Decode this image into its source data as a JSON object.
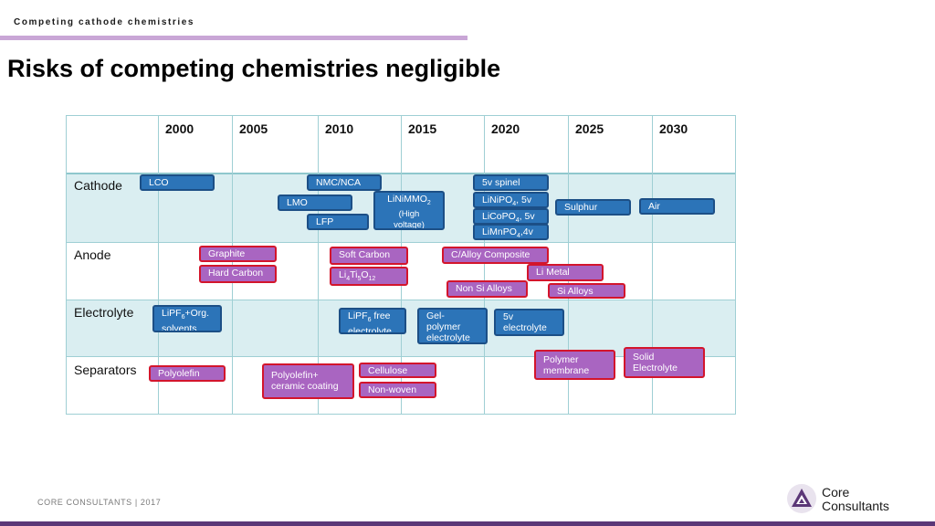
{
  "header": {
    "section_label": "Competing cathode chemistries",
    "title": "Risks of competing chemistries negligible"
  },
  "timeline": {
    "years": [
      "2000",
      "2005",
      "2010",
      "2015",
      "2020",
      "2025",
      "2030"
    ],
    "rows": {
      "cathode": {
        "label": "Cathode",
        "items": {
          "lco": "LCO",
          "nmc": "NMC/NCA",
          "lmo": "LMO",
          "lfp": "LFP",
          "linimmo2_a": "LiNiMMO",
          "linimmo2_sub": "2",
          "linimmo2_b": "(High",
          "linimmo2_c": "voltage)",
          "spinel": "5v spinel",
          "linipo4_a": "LiNiPO",
          "linipo4_sub": "4",
          "linipo4_b": ", 5v",
          "licopo4_a": "LiCoPO",
          "licopo4_sub": "4",
          "licopo4_b": ", 5v",
          "limnpo4_a": "LiMnPO",
          "limnpo4_sub": "4",
          "limnpo4_b": ",4v",
          "sulphur": "Sulphur",
          "air": "Air"
        }
      },
      "anode": {
        "label": "Anode",
        "items": {
          "graphite": "Graphite",
          "hard_carbon": "Hard Carbon",
          "soft_carbon": "Soft Carbon",
          "lto_a": "Li",
          "lto_s1": "4",
          "lto_b": "Ti",
          "lto_s2": "5",
          "lto_c": "O",
          "lto_s3": "12",
          "c_alloy": "C/Alloy Composite",
          "li_metal": "Li Metal",
          "non_si": "Non Si Alloys",
          "si_alloys": "Si Alloys"
        }
      },
      "electrolyte": {
        "label": "Electrolyte",
        "items": {
          "lipf6_org_a": "LiPF",
          "lipf6_org_sub": "6",
          "lipf6_org_b": "+Org.",
          "lipf6_org_c": "solvents",
          "lipf6_free_a": "LiPF",
          "lipf6_free_sub": "6",
          "lipf6_free_b": " free",
          "lipf6_free_c": "electrolyte",
          "gel_a": "Gel-",
          "gel_b": "polymer",
          "gel_c": "electrolyte",
          "v5_a": "5v",
          "v5_b": "electrolyte"
        }
      },
      "separators": {
        "label": "Separators",
        "items": {
          "polyolefin": "Polyolefin",
          "polyolefin_ceramic_a": "Polyolefin+",
          "polyolefin_ceramic_b": "ceramic coating",
          "cellulose": "Cellulose",
          "non_woven": "Non-woven",
          "polymer_membrane_a": "Polymer",
          "polymer_membrane_b": "membrane",
          "solid_electrolyte_a": "Solid",
          "solid_electrolyte_b": "Electrolyte"
        }
      }
    }
  },
  "footer": {
    "left_text": "CORE CONSULTANTS  | 2017",
    "logo_line1": "Core",
    "logo_line2": "Consultants"
  },
  "colors": {
    "accent_purple": "#a965c1",
    "accent_blue": "#2c74b8",
    "border_red": "#d3152c",
    "band": "#daeef1",
    "brand_dark": "#5b3777"
  }
}
